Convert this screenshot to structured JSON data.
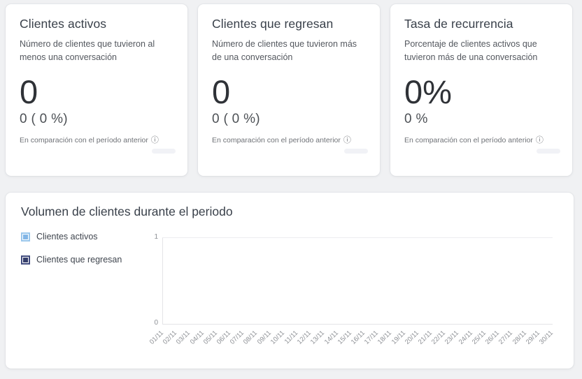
{
  "page": {
    "background": "#f0f1f3"
  },
  "stat_cards": [
    {
      "title": "Clientes activos",
      "description": "Número de clientes que tuvieron al menos una conversación",
      "value": "0",
      "delta": "0 ( 0 %)",
      "comparison_note": "En comparación con el período anterior",
      "info_icon": "ⓘ"
    },
    {
      "title": "Clientes que regresan",
      "description": "Número de clientes que tuvieron más de una conversación",
      "value": "0",
      "delta": "0 ( 0 %)",
      "comparison_note": "En comparación con el período anterior",
      "info_icon": "ⓘ"
    },
    {
      "title": "Tasa de recurrencia",
      "description": "Porcentaje de clientes activos que tuvieron más de una conversación",
      "value": "0%",
      "delta": "0 %",
      "comparison_note": "En comparación con el período anterior",
      "info_icon": "ⓘ"
    }
  ],
  "volume_card": {
    "title": "Volumen de clientes durante el periodo"
  },
  "chart_data": {
    "type": "line",
    "title": "Volumen de clientes durante el periodo",
    "x": [
      "01/11",
      "02/11",
      "03/11",
      "04/11",
      "05/11",
      "06/11",
      "07/11",
      "08/11",
      "09/11",
      "10/11",
      "11/11",
      "12/11",
      "13/11",
      "14/11",
      "15/11",
      "16/11",
      "17/11",
      "18/11",
      "19/11",
      "20/11",
      "21/11",
      "22/11",
      "23/11",
      "24/11",
      "25/11",
      "26/11",
      "27/11",
      "28/11",
      "29/11",
      "30/11"
    ],
    "series": [
      {
        "name": "Clientes activos",
        "border_color": "#9ac7ec",
        "fill_color": "#82b6e6",
        "values": []
      },
      {
        "name": "Clientes que regresan",
        "border_color": "#434e80",
        "fill_color": "#353f6b",
        "values": []
      }
    ],
    "ylim": [
      0,
      1
    ],
    "y_ticks": {
      "top": "1",
      "bottom": "0"
    },
    "legend_position": "left",
    "grid": "top gridline only, left and bottom axis lines",
    "note": "chart area is empty (no data points plotted)"
  }
}
